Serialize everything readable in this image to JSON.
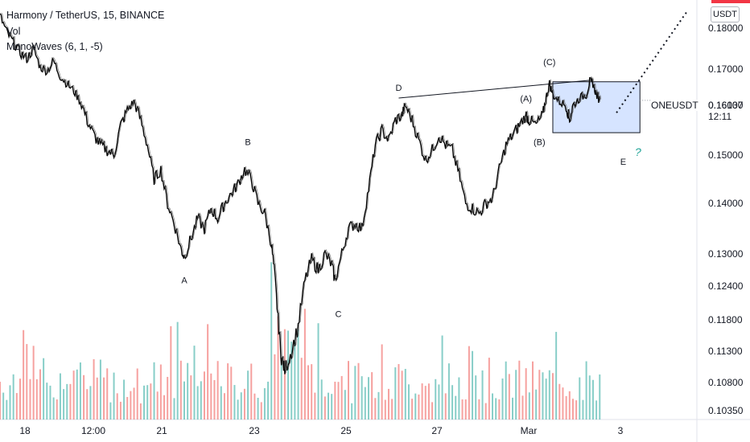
{
  "legend": {
    "symbol_line": "Harmony / TetherUS, 15, BINANCE",
    "vol_label": "Vol",
    "indicator_label": "MonoWaves (6, 1, -5)"
  },
  "currency_badge": "USDT",
  "symbol_tag": "ONEUSDT",
  "current_price": "0.16137",
  "countdown": "12:11",
  "question_mark": "?",
  "colors": {
    "price_line": "#000000",
    "volume_up": "#26a69a",
    "volume_down": "#ef5350",
    "box_fill": "#d6e4ff",
    "box_stroke": "#131722",
    "accent_red": "#f23645"
  },
  "chart_data": {
    "type": "line",
    "title": "Harmony / TetherUS, 15, BINANCE",
    "xlabel": "",
    "ylabel": "",
    "price_ticks": [
      "0.18000",
      "0.17000",
      "0.16000",
      "0.15000",
      "0.14000",
      "0.13000",
      "0.12400",
      "0.11800",
      "0.11300",
      "0.10800",
      "0.10350"
    ],
    "time_ticks": [
      "18",
      "12:00",
      "21",
      "23",
      "25",
      "27",
      "Mar",
      "3"
    ],
    "price_series": {
      "name": "",
      "points": [
        [
          0,
          0.183
        ],
        [
          2,
          0.179
        ],
        [
          4,
          0.1765
        ],
        [
          6,
          0.174
        ],
        [
          8,
          0.1725
        ],
        [
          10,
          0.175
        ],
        [
          12,
          0.1705
        ],
        [
          14,
          0.1695
        ],
        [
          16,
          0.172
        ],
        [
          18,
          0.168
        ],
        [
          20,
          0.166
        ],
        [
          22,
          0.164
        ],
        [
          24,
          0.161
        ],
        [
          26,
          0.157
        ],
        [
          28,
          0.154
        ],
        [
          30,
          0.152
        ],
        [
          32,
          0.151
        ],
        [
          34,
          0.15
        ],
        [
          36,
          0.156
        ],
        [
          38,
          0.159
        ],
        [
          40,
          0.161
        ],
        [
          42,
          0.157
        ],
        [
          44,
          0.152
        ],
        [
          46,
          0.145
        ],
        [
          48,
          0.147
        ],
        [
          50,
          0.14
        ],
        [
          52,
          0.136
        ],
        [
          54,
          0.131
        ],
        [
          55,
          0.1295
        ],
        [
          57,
          0.133
        ],
        [
          59,
          0.137
        ],
        [
          61,
          0.135
        ],
        [
          63,
          0.139
        ],
        [
          65,
          0.137
        ],
        [
          67,
          0.14
        ],
        [
          69,
          0.142
        ],
        [
          71,
          0.144
        ],
        [
          73,
          0.147
        ],
        [
          75,
          0.145
        ],
        [
          77,
          0.14
        ],
        [
          79,
          0.138
        ],
        [
          81,
          0.132
        ],
        [
          82,
          0.126
        ],
        [
          83,
          0.118
        ],
        [
          84,
          0.112
        ],
        [
          85,
          0.11
        ],
        [
          87,
          0.113
        ],
        [
          89,
          0.117
        ],
        [
          91,
          0.125
        ],
        [
          93,
          0.129
        ],
        [
          95,
          0.127
        ],
        [
          97,
          0.13
        ],
        [
          99,
          0.128
        ],
        [
          100,
          0.125
        ],
        [
          102,
          0.13
        ],
        [
          104,
          0.135
        ],
        [
          106,
          0.136
        ],
        [
          108,
          0.135
        ],
        [
          110,
          0.143
        ],
        [
          112,
          0.152
        ],
        [
          114,
          0.155
        ],
        [
          116,
          0.153
        ],
        [
          118,
          0.157
        ],
        [
          120,
          0.158
        ],
        [
          121,
          0.16
        ],
        [
          123,
          0.157
        ],
        [
          125,
          0.153
        ],
        [
          127,
          0.149
        ],
        [
          129,
          0.151
        ],
        [
          131,
          0.154
        ],
        [
          133,
          0.152
        ],
        [
          135,
          0.151
        ],
        [
          137,
          0.146
        ],
        [
          139,
          0.14
        ],
        [
          141,
          0.139
        ],
        [
          143,
          0.138
        ],
        [
          145,
          0.14
        ],
        [
          147,
          0.141
        ],
        [
          149,
          0.147
        ],
        [
          151,
          0.152
        ],
        [
          153,
          0.154
        ],
        [
          155,
          0.156
        ],
        [
          157,
          0.158
        ],
        [
          158,
          0.157
        ],
        [
          160,
          0.156
        ],
        [
          162,
          0.158
        ],
        [
          163,
          0.162
        ],
        [
          164,
          0.166
        ],
        [
          165,
          0.163
        ],
        [
          167,
          0.161
        ],
        [
          169,
          0.16
        ],
        [
          170,
          0.157
        ],
        [
          171,
          0.16
        ],
        [
          173,
          0.162
        ],
        [
          175,
          0.163
        ],
        [
          176,
          0.1665
        ],
        [
          177,
          0.166
        ],
        [
          178,
          0.163
        ],
        [
          179,
          0.1614
        ]
      ]
    },
    "price_range": [
      0.103,
      0.186
    ],
    "volume_range": [
      0,
      1
    ],
    "volume_bars_count": 180,
    "wave_labels": [
      {
        "text": "A",
        "x": 55,
        "y": 0.1245
      },
      {
        "text": "B",
        "x": 74,
        "y": 0.152
      },
      {
        "text": "C",
        "x": 101,
        "y": 0.1185
      },
      {
        "text": "D",
        "x": 119,
        "y": 0.164
      },
      {
        "text": "(A)",
        "x": 157,
        "y": 0.161
      },
      {
        "text": "(B)",
        "x": 161,
        "y": 0.152
      },
      {
        "text": "(C)",
        "x": 164,
        "y": 0.171
      },
      {
        "text": "E",
        "x": 186,
        "y": 0.148
      }
    ],
    "trendline": {
      "from": [
        119,
        0.162
      ],
      "to": [
        177,
        0.167
      ]
    },
    "box": {
      "x_from": 165,
      "x_to": 191,
      "y_from": 0.1545,
      "y_to": 0.1665
    },
    "projection": {
      "from": [
        184,
        0.1585
      ],
      "to": [
        205,
        0.184
      ]
    }
  }
}
